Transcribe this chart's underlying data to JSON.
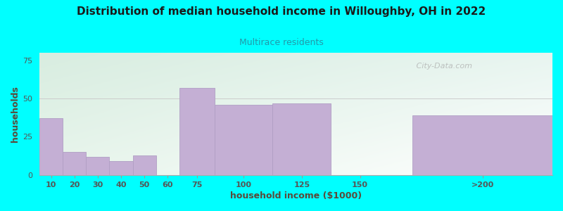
{
  "title": "Distribution of median household income in Willoughby, OH in 2022",
  "subtitle": "Multirace residents",
  "xlabel": "household income ($1000)",
  "ylabel": "households",
  "background_outer": "#00FFFF",
  "bar_color": "#c4afd4",
  "bar_edge_color": "#b09fc4",
  "title_color": "#1a1a1a",
  "subtitle_color": "#2299aa",
  "axis_label_color": "#5a4a3a",
  "tick_label_color": "#555555",
  "categories": [
    "10",
    "20",
    "30",
    "40",
    "50",
    "60",
    "75",
    "100",
    "125",
    "150",
    ">200"
  ],
  "values": [
    37,
    15,
    12,
    9,
    13,
    0,
    57,
    46,
    47,
    0,
    39
  ],
  "bar_lefts": [
    0,
    10,
    20,
    30,
    40,
    50,
    60,
    75,
    100,
    125,
    160
  ],
  "bar_rights": [
    10,
    20,
    30,
    40,
    50,
    60,
    75,
    100,
    125,
    150,
    220
  ],
  "tick_labels": [
    "10",
    "20",
    "30",
    "40",
    "50",
    "60",
    "75",
    "100",
    "125",
    "150",
    ">200"
  ],
  "ylim": [
    0,
    80
  ],
  "yticks": [
    0,
    25,
    50,
    75
  ],
  "watermark": " City-Data.com",
  "gradient_top_left": "#d8ede0",
  "gradient_bottom_right": "#ffffff"
}
